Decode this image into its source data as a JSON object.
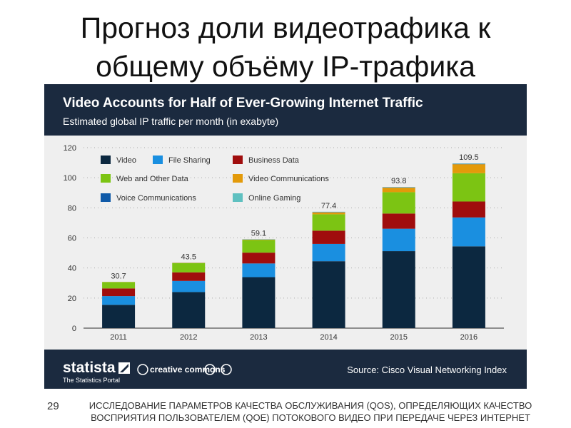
{
  "slide": {
    "title_line1": "Прогноз доли видеотрафика к",
    "title_line2": "общему объёму IP-трафика",
    "number": "29",
    "footer_line1": "ИССЛЕДОВАНИЕ ПАРАМЕТРОВ КАЧЕСТВА ОБСЛУЖИВАНИЯ (QOS), ОПРЕДЕЛЯЮЩИХ КАЧЕСТВО",
    "footer_line2": "ВОСПРИЯТИЯ ПОЛЬЗОВАТЕЛЕМ (QOE) ПОТОКОВОГО ВИДЕО ПРИ ПЕРЕДАЧЕ ЧЕРЕЗ ИНТЕРНЕТ"
  },
  "brand": {
    "name": "statista",
    "tagline": "The Statistics Portal",
    "license": "creative commons",
    "source": "Source: Cisco Visual Networking Index"
  },
  "colors": {
    "header": "#1b2a3f",
    "plot_bg": "#efefef"
  },
  "chart_data": {
    "type": "bar",
    "stacked": true,
    "title": "Video Accounts for Half of Ever-Growing Internet Traffic",
    "subtitle": "Estimated global IP traffic per month (in exabyte)",
    "xlabel": "",
    "ylabel": "",
    "ylim": [
      0,
      120
    ],
    "yticks": [
      0,
      20,
      40,
      60,
      80,
      100,
      120
    ],
    "grid": true,
    "legend_position": "top-left",
    "categories": [
      "2011",
      "2012",
      "2013",
      "2014",
      "2015",
      "2016"
    ],
    "totals": [
      "30.7",
      "43.5",
      "59.1",
      "77.4",
      "93.8",
      "109.5"
    ],
    "series": [
      {
        "name": "Video",
        "color": "#0c2840",
        "values": [
          15.5,
          24.0,
          33.9,
          44.5,
          51.2,
          54.4
        ]
      },
      {
        "name": "File Sharing",
        "color": "#1a8fe0",
        "values": [
          5.8,
          7.4,
          9.1,
          11.5,
          14.9,
          19.2
        ]
      },
      {
        "name": "Business Data",
        "color": "#a00d0d",
        "values": [
          5.1,
          5.7,
          7.2,
          8.8,
          10.1,
          10.6
        ]
      },
      {
        "name": "Web and Other Data",
        "color": "#7cc413",
        "values": [
          4.2,
          6.1,
          8.4,
          10.9,
          14.2,
          18.8
        ]
      },
      {
        "name": "Video Communications",
        "color": "#e39a0a",
        "values": [
          0.1,
          0.2,
          0.3,
          1.3,
          3.0,
          6.0
        ]
      },
      {
        "name": "Voice Communications",
        "color": "#0f5aa8",
        "values": [
          0.0,
          0.05,
          0.1,
          0.2,
          0.2,
          0.25
        ]
      },
      {
        "name": "Online Gaming",
        "color": "#5fc0c0",
        "values": [
          0.0,
          0.05,
          0.1,
          0.2,
          0.2,
          0.25
        ]
      }
    ]
  }
}
